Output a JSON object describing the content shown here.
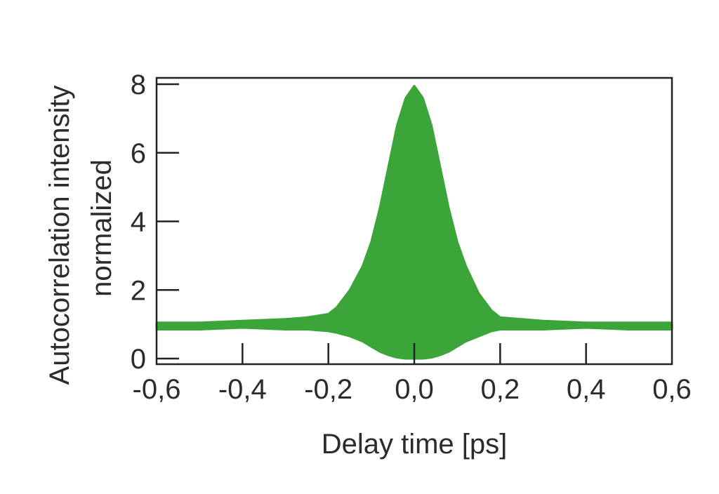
{
  "chart_data": {
    "type": "area",
    "title": "",
    "xlabel": "Delay time [ps]",
    "ylabel_line1": "Autocorrelation intensity",
    "ylabel_line2": "normalized",
    "xlim": [
      -0.6,
      0.6
    ],
    "ylim": [
      0,
      8
    ],
    "x_ticks": [
      -0.6,
      -0.4,
      -0.2,
      0.0,
      0.2,
      0.4,
      0.6
    ],
    "x_tick_labels": [
      "-0,6",
      "-0,4",
      "-0,2",
      "0,0",
      "0,2",
      "0,4",
      "0,6"
    ],
    "y_ticks": [
      0,
      2,
      4,
      6,
      8
    ],
    "y_tick_labels": [
      "0",
      "2",
      "4",
      "6",
      "8"
    ],
    "grid": false,
    "series": [
      {
        "color": "#3ca53a",
        "x": [
          -0.6,
          -0.5,
          -0.4,
          -0.3,
          -0.25,
          -0.2,
          -0.18,
          -0.15,
          -0.12,
          -0.1,
          -0.08,
          -0.06,
          -0.04,
          -0.02,
          0.0,
          0.02,
          0.04,
          0.06,
          0.08,
          0.1,
          0.12,
          0.15,
          0.18,
          0.2,
          0.25,
          0.3,
          0.4,
          0.5,
          0.6
        ],
        "upper": [
          1.05,
          1.05,
          1.1,
          1.15,
          1.2,
          1.3,
          1.5,
          2.0,
          2.7,
          3.4,
          4.4,
          5.6,
          6.8,
          7.6,
          7.95,
          7.6,
          6.8,
          5.6,
          4.4,
          3.4,
          2.7,
          1.9,
          1.4,
          1.2,
          1.15,
          1.1,
          1.05,
          1.05,
          1.05
        ],
        "lower": [
          0.85,
          0.85,
          0.9,
          0.85,
          0.85,
          0.8,
          0.75,
          0.65,
          0.5,
          0.35,
          0.2,
          0.1,
          0.03,
          0.0,
          0.0,
          0.0,
          0.03,
          0.1,
          0.2,
          0.35,
          0.5,
          0.65,
          0.8,
          0.85,
          0.85,
          0.85,
          0.9,
          0.85,
          0.85
        ]
      }
    ]
  }
}
